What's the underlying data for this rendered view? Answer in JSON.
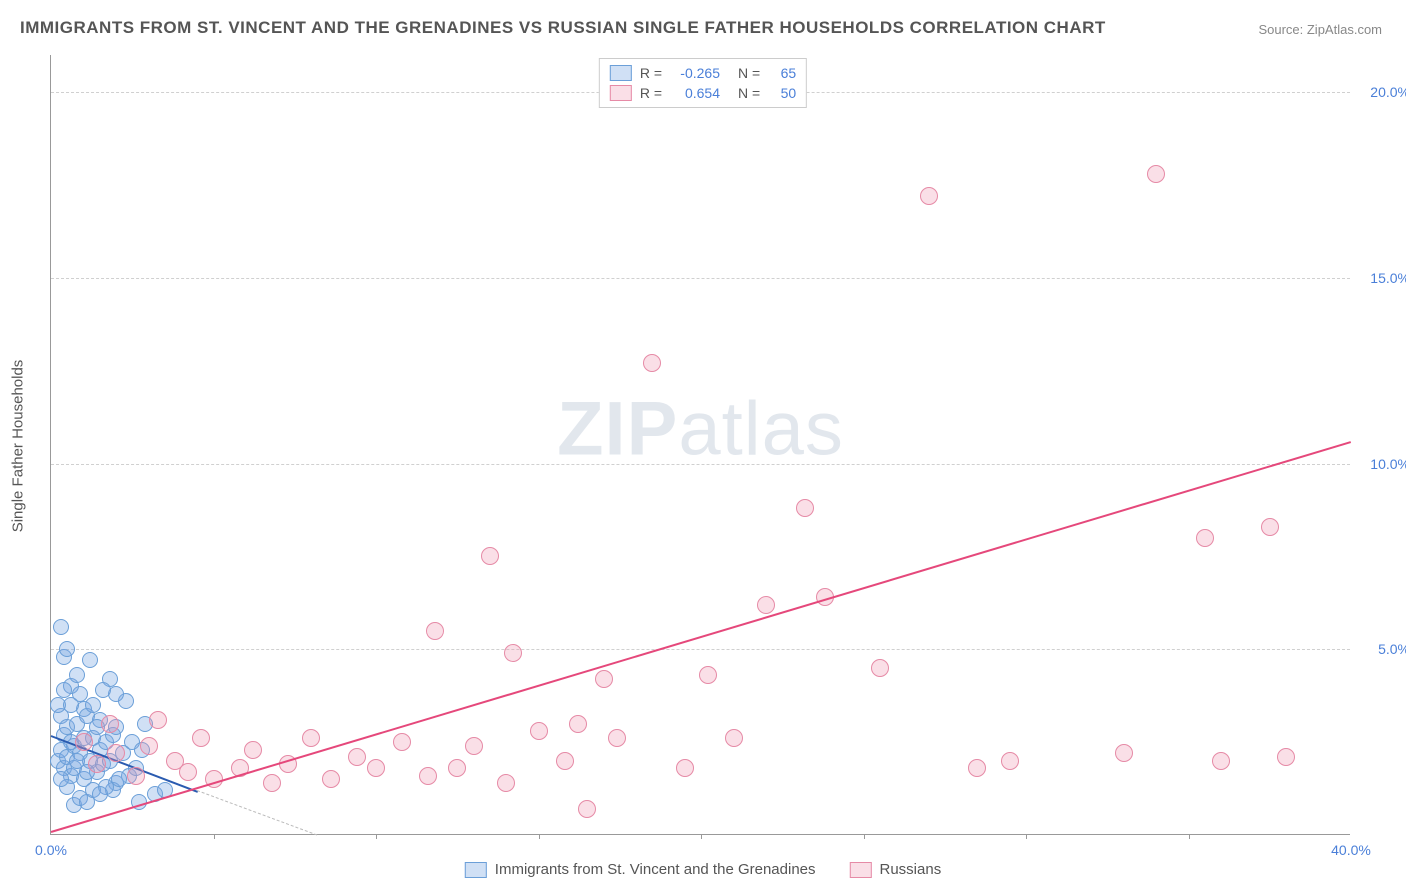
{
  "title": "IMMIGRANTS FROM ST. VINCENT AND THE GRENADINES VS RUSSIAN SINGLE FATHER HOUSEHOLDS CORRELATION CHART",
  "source": "Source: ZipAtlas.com",
  "watermark_a": "ZIP",
  "watermark_b": "atlas",
  "ylabel": "Single Father Households",
  "chart": {
    "type": "scatter",
    "background_color": "#ffffff",
    "grid_color": "#d0d0d0",
    "axis_color": "#999999",
    "tick_color": "#4a7fd8",
    "xlim": [
      0,
      40
    ],
    "ylim": [
      0,
      21
    ],
    "yticks": [
      {
        "v": 5,
        "label": "5.0%"
      },
      {
        "v": 10,
        "label": "10.0%"
      },
      {
        "v": 15,
        "label": "15.0%"
      },
      {
        "v": 20,
        "label": "20.0%"
      }
    ],
    "xticks": [
      {
        "v": 0,
        "label": "0.0%"
      },
      {
        "v": 40,
        "label": "40.0%"
      }
    ],
    "xtick_marks": [
      5,
      10,
      15,
      20,
      25,
      30,
      35
    ],
    "series": [
      {
        "name": "Immigrants from St. Vincent and the Grenadines",
        "fill": "rgba(120,165,225,0.35)",
        "stroke": "#6b9fd8",
        "marker_r": 8,
        "R": "-0.265",
        "N": "65",
        "trend": {
          "x1": 0,
          "y1": 2.7,
          "x2": 4.5,
          "y2": 1.2,
          "color": "#2a5bb0",
          "dashext": {
            "x2": 8.2,
            "y2": 0
          }
        },
        "points": [
          [
            0.2,
            2.0
          ],
          [
            0.3,
            2.3
          ],
          [
            0.4,
            1.8
          ],
          [
            0.4,
            2.7
          ],
          [
            0.3,
            3.2
          ],
          [
            0.5,
            2.1
          ],
          [
            0.6,
            1.6
          ],
          [
            0.5,
            2.9
          ],
          [
            0.7,
            2.4
          ],
          [
            0.8,
            3.0
          ],
          [
            0.6,
            4.0
          ],
          [
            0.9,
            2.2
          ],
          [
            1.0,
            1.5
          ],
          [
            1.0,
            3.4
          ],
          [
            0.4,
            4.8
          ],
          [
            0.3,
            5.6
          ],
          [
            1.2,
            2.0
          ],
          [
            1.3,
            2.6
          ],
          [
            1.1,
            3.2
          ],
          [
            1.4,
            1.7
          ],
          [
            0.8,
            4.3
          ],
          [
            0.5,
            5.0
          ],
          [
            1.5,
            2.3
          ],
          [
            1.6,
            1.9
          ],
          [
            1.5,
            3.1
          ],
          [
            1.7,
            2.5
          ],
          [
            1.8,
            2.0
          ],
          [
            1.9,
            2.7
          ],
          [
            2.0,
            1.4
          ],
          [
            2.0,
            2.9
          ],
          [
            0.7,
            0.8
          ],
          [
            0.9,
            1.0
          ],
          [
            1.1,
            0.9
          ],
          [
            1.3,
            1.2
          ],
          [
            2.2,
            2.2
          ],
          [
            2.3,
            3.6
          ],
          [
            2.4,
            1.6
          ],
          [
            2.5,
            2.5
          ],
          [
            2.6,
            1.8
          ],
          [
            2.8,
            2.3
          ],
          [
            1.8,
            4.2
          ],
          [
            2.0,
            3.8
          ],
          [
            1.2,
            4.7
          ],
          [
            0.9,
            3.8
          ],
          [
            1.6,
            3.9
          ],
          [
            0.6,
            2.5
          ],
          [
            1.0,
            2.6
          ],
          [
            1.4,
            2.9
          ],
          [
            0.5,
            1.3
          ],
          [
            0.7,
            1.8
          ],
          [
            0.3,
            1.5
          ],
          [
            1.1,
            1.7
          ],
          [
            1.9,
            1.2
          ],
          [
            2.1,
            1.5
          ],
          [
            2.7,
            0.9
          ],
          [
            3.2,
            1.1
          ],
          [
            3.5,
            1.2
          ],
          [
            2.9,
            3.0
          ],
          [
            1.7,
            1.3
          ],
          [
            0.2,
            3.5
          ],
          [
            0.4,
            3.9
          ],
          [
            0.8,
            2.0
          ],
          [
            1.3,
            3.5
          ],
          [
            1.5,
            1.1
          ],
          [
            0.6,
            3.5
          ]
        ]
      },
      {
        "name": "Russians",
        "fill": "rgba(240,150,175,0.30)",
        "stroke": "#e68aa6",
        "marker_r": 9,
        "R": "0.654",
        "N": "50",
        "trend": {
          "x1": 0,
          "y1": 0.1,
          "x2": 40,
          "y2": 10.6,
          "color": "#e5487b"
        },
        "points": [
          [
            1.0,
            2.5
          ],
          [
            1.4,
            1.9
          ],
          [
            1.8,
            3.0
          ],
          [
            2.0,
            2.2
          ],
          [
            2.6,
            1.6
          ],
          [
            3.0,
            2.4
          ],
          [
            3.3,
            3.1
          ],
          [
            3.8,
            2.0
          ],
          [
            4.2,
            1.7
          ],
          [
            4.6,
            2.6
          ],
          [
            5.0,
            1.5
          ],
          [
            5.8,
            1.8
          ],
          [
            6.2,
            2.3
          ],
          [
            6.8,
            1.4
          ],
          [
            7.3,
            1.9
          ],
          [
            8.0,
            2.6
          ],
          [
            8.6,
            1.5
          ],
          [
            9.4,
            2.1
          ],
          [
            10.0,
            1.8
          ],
          [
            10.8,
            2.5
          ],
          [
            11.6,
            1.6
          ],
          [
            11.8,
            5.5
          ],
          [
            12.5,
            1.8
          ],
          [
            13.0,
            2.4
          ],
          [
            13.5,
            7.5
          ],
          [
            14.0,
            1.4
          ],
          [
            14.2,
            4.9
          ],
          [
            15.0,
            2.8
          ],
          [
            15.8,
            2.0
          ],
          [
            16.2,
            3.0
          ],
          [
            16.5,
            0.7
          ],
          [
            17.0,
            4.2
          ],
          [
            17.4,
            2.6
          ],
          [
            18.5,
            12.7
          ],
          [
            19.5,
            1.8
          ],
          [
            20.2,
            4.3
          ],
          [
            21.0,
            2.6
          ],
          [
            22.0,
            6.2
          ],
          [
            23.2,
            8.8
          ],
          [
            23.8,
            6.4
          ],
          [
            25.5,
            4.5
          ],
          [
            27.0,
            17.2
          ],
          [
            28.5,
            1.8
          ],
          [
            29.5,
            2.0
          ],
          [
            33.0,
            2.2
          ],
          [
            34.0,
            17.8
          ],
          [
            35.5,
            8.0
          ],
          [
            36.0,
            2.0
          ],
          [
            37.5,
            8.3
          ],
          [
            38.0,
            2.1
          ]
        ]
      }
    ]
  },
  "legend_bottom": [
    {
      "label": "Immigrants from St. Vincent and the Grenadines",
      "fill": "rgba(120,165,225,0.35)",
      "stroke": "#6b9fd8"
    },
    {
      "label": "Russians",
      "fill": "rgba(240,150,175,0.30)",
      "stroke": "#e68aa6"
    }
  ]
}
